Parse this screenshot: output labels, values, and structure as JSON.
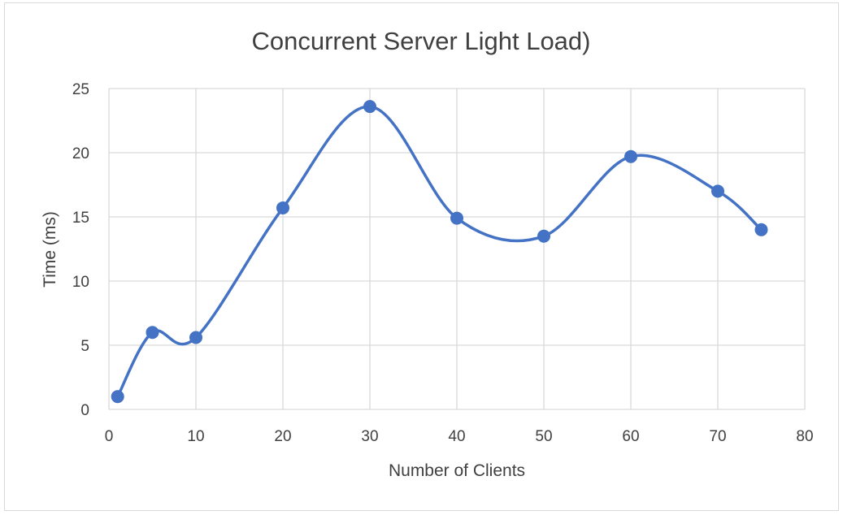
{
  "chart_data": {
    "type": "line",
    "title": "Concurrent Server Light Load)",
    "xlabel": "Number of Clients",
    "ylabel": "Time (ms)",
    "xlim": [
      0,
      80
    ],
    "ylim": [
      0,
      25
    ],
    "xticks": [
      0,
      10,
      20,
      30,
      40,
      50,
      60,
      70,
      80
    ],
    "yticks": [
      0,
      5,
      10,
      15,
      20,
      25
    ],
    "smooth": true,
    "grid": true,
    "legend": "none",
    "color": "#4472c4",
    "series": [
      {
        "x": [
          1,
          5,
          10,
          20,
          30,
          40,
          50,
          60,
          70,
          75
        ],
        "y": [
          1.0,
          6.0,
          5.6,
          15.7,
          23.6,
          14.9,
          13.5,
          19.7,
          17.0,
          14.0
        ]
      }
    ]
  }
}
